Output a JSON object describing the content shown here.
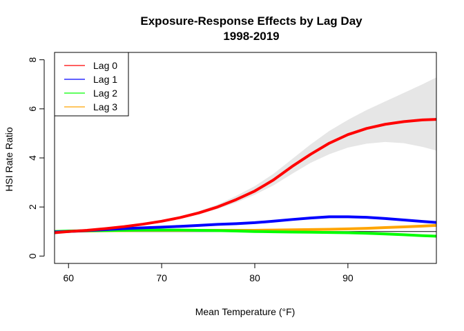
{
  "chart_data": {
    "type": "line",
    "title": "Exposure-Response Effects by Lag Day",
    "subtitle": "1998-2019",
    "xlabel": "Mean Temperature (°F)",
    "ylabel": "HSI Rate Ratio",
    "xlim": [
      58.5,
      99.5
    ],
    "ylim": [
      -0.3,
      8.3
    ],
    "x_ticks": [
      60,
      70,
      80,
      90
    ],
    "y_ticks": [
      0,
      2,
      4,
      6,
      8
    ],
    "grid": false,
    "legend_position": "top-left",
    "reference_line": 1,
    "series": [
      {
        "name": "Lag 0",
        "color": "#ff0000",
        "x": [
          58.5,
          60,
          62,
          64,
          66,
          68,
          70,
          72,
          74,
          76,
          78,
          80,
          82,
          84,
          86,
          88,
          90,
          92,
          94,
          96,
          98,
          99.5
        ],
        "y": [
          0.95,
          1.0,
          1.05,
          1.12,
          1.2,
          1.3,
          1.42,
          1.57,
          1.76,
          2.0,
          2.3,
          2.65,
          3.1,
          3.65,
          4.15,
          4.6,
          4.95,
          5.2,
          5.37,
          5.48,
          5.55,
          5.57
        ],
        "ci_lower": [
          0.93,
          0.98,
          1.03,
          1.1,
          1.18,
          1.27,
          1.38,
          1.52,
          1.7,
          1.92,
          2.18,
          2.5,
          2.88,
          3.35,
          3.8,
          4.15,
          4.42,
          4.58,
          4.65,
          4.6,
          4.45,
          4.3
        ],
        "ci_upper": [
          0.98,
          1.02,
          1.08,
          1.15,
          1.23,
          1.33,
          1.46,
          1.62,
          1.83,
          2.1,
          2.45,
          2.85,
          3.35,
          3.95,
          4.55,
          5.1,
          5.55,
          5.95,
          6.3,
          6.65,
          7.0,
          7.28
        ]
      },
      {
        "name": "Lag 1",
        "color": "#0000ff",
        "x": [
          58.5,
          60,
          62,
          64,
          66,
          68,
          70,
          72,
          74,
          76,
          78,
          80,
          82,
          84,
          86,
          88,
          90,
          92,
          94,
          96,
          98,
          99.5
        ],
        "y": [
          0.98,
          1.0,
          1.04,
          1.08,
          1.12,
          1.15,
          1.18,
          1.21,
          1.25,
          1.29,
          1.32,
          1.36,
          1.42,
          1.49,
          1.55,
          1.6,
          1.6,
          1.58,
          1.53,
          1.47,
          1.41,
          1.37
        ]
      },
      {
        "name": "Lag 2",
        "color": "#00ff00",
        "x": [
          58.5,
          60,
          62,
          64,
          66,
          68,
          70,
          72,
          74,
          76,
          78,
          80,
          82,
          84,
          86,
          88,
          90,
          92,
          94,
          96,
          98,
          99.5
        ],
        "y": [
          1.0,
          1.02,
          1.03,
          1.04,
          1.05,
          1.06,
          1.06,
          1.06,
          1.05,
          1.04,
          1.02,
          1.0,
          0.99,
          0.98,
          0.97,
          0.96,
          0.95,
          0.93,
          0.9,
          0.87,
          0.83,
          0.81
        ]
      },
      {
        "name": "Lag 3",
        "color": "#ffa500",
        "x": [
          58.5,
          60,
          62,
          64,
          66,
          68,
          70,
          72,
          74,
          76,
          78,
          80,
          82,
          84,
          86,
          88,
          90,
          92,
          94,
          96,
          98,
          99.5
        ],
        "y": [
          1.0,
          1.01,
          1.02,
          1.03,
          1.04,
          1.05,
          1.05,
          1.05,
          1.05,
          1.05,
          1.05,
          1.05,
          1.06,
          1.07,
          1.08,
          1.09,
          1.11,
          1.13,
          1.16,
          1.19,
          1.22,
          1.25
        ]
      }
    ]
  }
}
